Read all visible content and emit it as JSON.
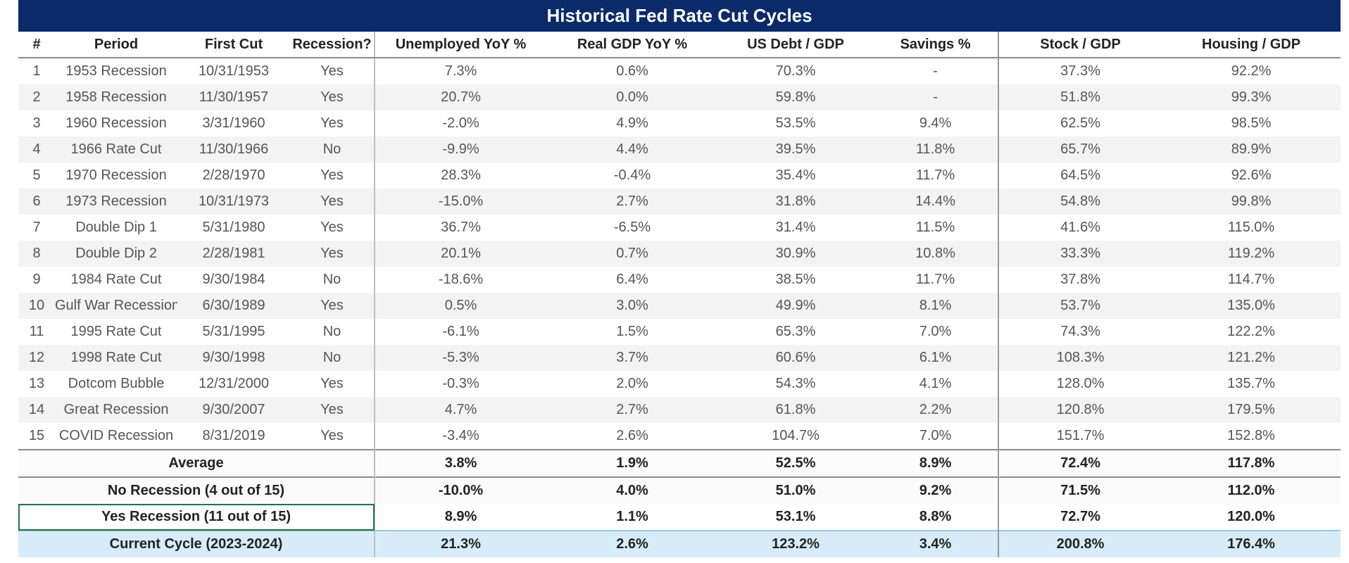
{
  "title": "Historical Fed Rate Cut Cycles",
  "columns": [
    "#",
    "Period",
    "First Cut",
    "Recession?",
    "Unemployed YoY %",
    "Real GDP YoY %",
    "US Debt / GDP",
    "Savings %",
    "Stock / GDP",
    "Housing / GDP"
  ],
  "rows": [
    {
      "num": "1",
      "period": "1953 Recession",
      "first_cut": "10/31/1953",
      "recession": "Yes",
      "unemployed": "7.3%",
      "real_gdp": "0.6%",
      "debt_gdp": "70.3%",
      "savings": "-",
      "stock_gdp": "37.3%",
      "housing_gdp": "92.2%"
    },
    {
      "num": "2",
      "period": "1958 Recession",
      "first_cut": "11/30/1957",
      "recession": "Yes",
      "unemployed": "20.7%",
      "real_gdp": "0.0%",
      "debt_gdp": "59.8%",
      "savings": "-",
      "stock_gdp": "51.8%",
      "housing_gdp": "99.3%"
    },
    {
      "num": "3",
      "period": "1960 Recession",
      "first_cut": "3/31/1960",
      "recession": "Yes",
      "unemployed": "-2.0%",
      "real_gdp": "4.9%",
      "debt_gdp": "53.5%",
      "savings": "9.4%",
      "stock_gdp": "62.5%",
      "housing_gdp": "98.5%"
    },
    {
      "num": "4",
      "period": "1966 Rate Cut",
      "first_cut": "11/30/1966",
      "recession": "No",
      "unemployed": "-9.9%",
      "real_gdp": "4.4%",
      "debt_gdp": "39.5%",
      "savings": "11.8%",
      "stock_gdp": "65.7%",
      "housing_gdp": "89.9%"
    },
    {
      "num": "5",
      "period": "1970 Recession",
      "first_cut": "2/28/1970",
      "recession": "Yes",
      "unemployed": "28.3%",
      "real_gdp": "-0.4%",
      "debt_gdp": "35.4%",
      "savings": "11.7%",
      "stock_gdp": "64.5%",
      "housing_gdp": "92.6%"
    },
    {
      "num": "6",
      "period": "1973 Recession",
      "first_cut": "10/31/1973",
      "recession": "Yes",
      "unemployed": "-15.0%",
      "real_gdp": "2.7%",
      "debt_gdp": "31.8%",
      "savings": "14.4%",
      "stock_gdp": "54.8%",
      "housing_gdp": "99.8%"
    },
    {
      "num": "7",
      "period": "Double Dip 1",
      "first_cut": "5/31/1980",
      "recession": "Yes",
      "unemployed": "36.7%",
      "real_gdp": "-6.5%",
      "debt_gdp": "31.4%",
      "savings": "11.5%",
      "stock_gdp": "41.6%",
      "housing_gdp": "115.0%"
    },
    {
      "num": "8",
      "period": "Double Dip 2",
      "first_cut": "2/28/1981",
      "recession": "Yes",
      "unemployed": "20.1%",
      "real_gdp": "0.7%",
      "debt_gdp": "30.9%",
      "savings": "10.8%",
      "stock_gdp": "33.3%",
      "housing_gdp": "119.2%"
    },
    {
      "num": "9",
      "period": "1984 Rate Cut",
      "first_cut": "9/30/1984",
      "recession": "No",
      "unemployed": "-18.6%",
      "real_gdp": "6.4%",
      "debt_gdp": "38.5%",
      "savings": "11.7%",
      "stock_gdp": "37.8%",
      "housing_gdp": "114.7%"
    },
    {
      "num": "10",
      "period": "Gulf War Recession",
      "first_cut": "6/30/1989",
      "recession": "Yes",
      "unemployed": "0.5%",
      "real_gdp": "3.0%",
      "debt_gdp": "49.9%",
      "savings": "8.1%",
      "stock_gdp": "53.7%",
      "housing_gdp": "135.0%"
    },
    {
      "num": "11",
      "period": "1995 Rate Cut",
      "first_cut": "5/31/1995",
      "recession": "No",
      "unemployed": "-6.1%",
      "real_gdp": "1.5%",
      "debt_gdp": "65.3%",
      "savings": "7.0%",
      "stock_gdp": "74.3%",
      "housing_gdp": "122.2%"
    },
    {
      "num": "12",
      "period": "1998 Rate Cut",
      "first_cut": "9/30/1998",
      "recession": "No",
      "unemployed": "-5.3%",
      "real_gdp": "3.7%",
      "debt_gdp": "60.6%",
      "savings": "6.1%",
      "stock_gdp": "108.3%",
      "housing_gdp": "121.2%"
    },
    {
      "num": "13",
      "period": "Dotcom Bubble",
      "first_cut": "12/31/2000",
      "recession": "Yes",
      "unemployed": "-0.3%",
      "real_gdp": "2.0%",
      "debt_gdp": "54.3%",
      "savings": "4.1%",
      "stock_gdp": "128.0%",
      "housing_gdp": "135.7%"
    },
    {
      "num": "14",
      "period": "Great Recession",
      "first_cut": "9/30/2007",
      "recession": "Yes",
      "unemployed": "4.7%",
      "real_gdp": "2.7%",
      "debt_gdp": "61.8%",
      "savings": "2.2%",
      "stock_gdp": "120.8%",
      "housing_gdp": "179.5%"
    },
    {
      "num": "15",
      "period": "COVID Recession",
      "first_cut": "8/31/2019",
      "recession": "Yes",
      "unemployed": "-3.4%",
      "real_gdp": "2.6%",
      "debt_gdp": "104.7%",
      "savings": "7.0%",
      "stock_gdp": "151.7%",
      "housing_gdp": "152.8%"
    }
  ],
  "summary": [
    {
      "kind": "avg",
      "label": "Average",
      "unemployed": "3.8%",
      "real_gdp": "1.9%",
      "debt_gdp": "52.5%",
      "savings": "8.9%",
      "stock_gdp": "72.4%",
      "housing_gdp": "117.8%"
    },
    {
      "kind": "norec",
      "label": "No Recession (4 out of 15)",
      "unemployed": "-10.0%",
      "real_gdp": "4.0%",
      "debt_gdp": "51.0%",
      "savings": "9.2%",
      "stock_gdp": "71.5%",
      "housing_gdp": "112.0%"
    },
    {
      "kind": "yesrec",
      "label": "Yes Recession (11 out of 15)",
      "unemployed": "8.9%",
      "real_gdp": "1.1%",
      "debt_gdp": "53.1%",
      "savings": "8.8%",
      "stock_gdp": "72.7%",
      "housing_gdp": "120.0%"
    },
    {
      "kind": "current",
      "label": "Current Cycle (2023-2024)",
      "unemployed": "21.3%",
      "real_gdp": "2.6%",
      "debt_gdp": "123.2%",
      "savings": "3.4%",
      "stock_gdp": "200.8%",
      "housing_gdp": "176.4%"
    }
  ],
  "colors": {
    "title_bg": "#0b2a6a",
    "current_row_bg": "#d7ecf8",
    "selection": "#217346"
  }
}
